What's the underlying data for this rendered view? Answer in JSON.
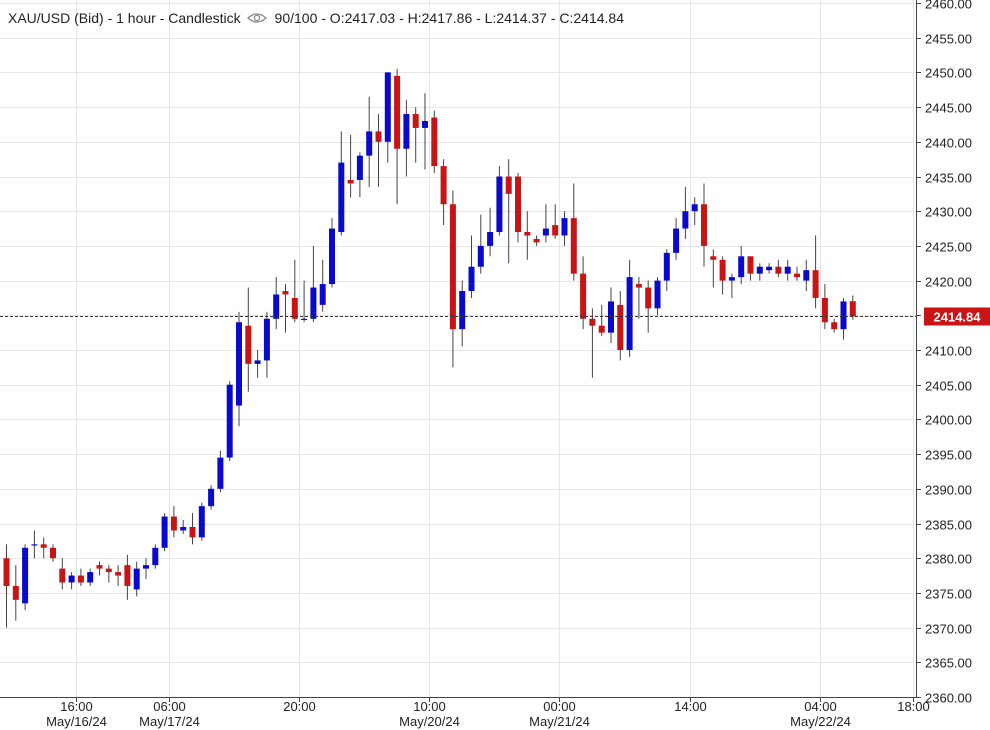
{
  "header": {
    "symbol_line": "XAU/USD (Bid) - 1 hour - Candlestick",
    "eye_icon": "eye-icon",
    "quality": "90/100",
    "ohlc": "- O:2417.03 - H:2417.86 - L:2414.37 - C:2414.84"
  },
  "colors": {
    "up": "#0a0acf",
    "down": "#c81414",
    "grid": "#e6e6e6",
    "price_marker": "#c81414"
  },
  "chart_data": {
    "type": "candlestick",
    "title": "XAU/USD (Bid) - 1 hour - Candlestick",
    "ylim": [
      2360,
      2460
    ],
    "y_ticks": [
      "2360.00",
      "2365.00",
      "2370.00",
      "2375.00",
      "2380.00",
      "2385.00",
      "2390.00",
      "2395.00",
      "2400.00",
      "2405.00",
      "2410.00",
      "2415.00",
      "2420.00",
      "2425.00",
      "2430.00",
      "2435.00",
      "2440.00",
      "2445.00",
      "2450.00",
      "2455.00",
      "2460.00"
    ],
    "x_ticks": [
      {
        "index": 4,
        "time": "16:00",
        "date": "May/16/24"
      },
      {
        "index": 14,
        "time": "06:00",
        "date": "May/17/24"
      },
      {
        "index": 28,
        "time": "20:00",
        "date": ""
      },
      {
        "index": 42,
        "time": "10:00",
        "date": "May/20/24"
      },
      {
        "index": 56,
        "time": "00:00",
        "date": "May/21/24"
      },
      {
        "index": 70,
        "time": "14:00",
        "date": ""
      },
      {
        "index": 84,
        "time": "04:00",
        "date": "May/22/24"
      },
      {
        "index": 94,
        "time": "18:00",
        "date": ""
      }
    ],
    "last_price": "2414.84",
    "candles": [
      {
        "o": 2380.0,
        "h": 2382.0,
        "l": 2370.0,
        "c": 2376.0
      },
      {
        "o": 2376.0,
        "h": 2379.0,
        "l": 2371.0,
        "c": 2374.0
      },
      {
        "o": 2373.5,
        "h": 2382.0,
        "l": 2372.5,
        "c": 2381.5
      },
      {
        "o": 2382.0,
        "h": 2384.0,
        "l": 2380.0,
        "c": 2382.0
      },
      {
        "o": 2382.0,
        "h": 2383.0,
        "l": 2380.0,
        "c": 2381.5
      },
      {
        "o": 2381.5,
        "h": 2382.0,
        "l": 2379.5,
        "c": 2380.0
      },
      {
        "o": 2378.5,
        "h": 2380.0,
        "l": 2375.5,
        "c": 2376.5
      },
      {
        "o": 2376.5,
        "h": 2378.0,
        "l": 2375.5,
        "c": 2377.5
      },
      {
        "o": 2377.5,
        "h": 2378.5,
        "l": 2376.0,
        "c": 2376.5
      },
      {
        "o": 2376.5,
        "h": 2378.5,
        "l": 2376.0,
        "c": 2378.0
      },
      {
        "o": 2379.0,
        "h": 2379.5,
        "l": 2377.5,
        "c": 2378.5
      },
      {
        "o": 2378.5,
        "h": 2379.0,
        "l": 2376.5,
        "c": 2378.0
      },
      {
        "o": 2378.0,
        "h": 2379.0,
        "l": 2376.0,
        "c": 2377.5
      },
      {
        "o": 2379.0,
        "h": 2380.5,
        "l": 2374.0,
        "c": 2376.0
      },
      {
        "o": 2375.5,
        "h": 2379.5,
        "l": 2374.5,
        "c": 2378.5
      },
      {
        "o": 2378.5,
        "h": 2380.0,
        "l": 2377.0,
        "c": 2379.0
      },
      {
        "o": 2379.0,
        "h": 2382.0,
        "l": 2378.5,
        "c": 2381.5
      },
      {
        "o": 2381.5,
        "h": 2386.5,
        "l": 2381.0,
        "c": 2386.0
      },
      {
        "o": 2386.0,
        "h": 2387.5,
        "l": 2383.0,
        "c": 2384.0
      },
      {
        "o": 2384.0,
        "h": 2385.5,
        "l": 2383.5,
        "c": 2384.5
      },
      {
        "o": 2384.5,
        "h": 2386.5,
        "l": 2382.0,
        "c": 2383.0
      },
      {
        "o": 2383.0,
        "h": 2388.0,
        "l": 2382.5,
        "c": 2387.5
      },
      {
        "o": 2387.5,
        "h": 2390.5,
        "l": 2387.0,
        "c": 2390.0
      },
      {
        "o": 2390.0,
        "h": 2395.5,
        "l": 2389.5,
        "c": 2394.5
      },
      {
        "o": 2394.5,
        "h": 2405.5,
        "l": 2394.0,
        "c": 2405.0
      },
      {
        "o": 2402.0,
        "h": 2415.5,
        "l": 2399.0,
        "c": 2414.0
      },
      {
        "o": 2413.5,
        "h": 2419.0,
        "l": 2404.0,
        "c": 2408.0
      },
      {
        "o": 2408.0,
        "h": 2410.0,
        "l": 2406.0,
        "c": 2408.5
      },
      {
        "o": 2408.5,
        "h": 2415.5,
        "l": 2406.0,
        "c": 2414.5
      },
      {
        "o": 2414.5,
        "h": 2420.5,
        "l": 2413.0,
        "c": 2418.0
      },
      {
        "o": 2418.5,
        "h": 2419.5,
        "l": 2412.5,
        "c": 2418.0
      },
      {
        "o": 2417.5,
        "h": 2423.0,
        "l": 2414.0,
        "c": 2414.5
      },
      {
        "o": 2414.5,
        "h": 2420.0,
        "l": 2414.0,
        "c": 2414.5
      },
      {
        "o": 2414.5,
        "h": 2425.0,
        "l": 2414.0,
        "c": 2419.0
      },
      {
        "o": 2416.5,
        "h": 2423.0,
        "l": 2415.5,
        "c": 2419.5
      },
      {
        "o": 2419.5,
        "h": 2429.0,
        "l": 2419.0,
        "c": 2427.5
      },
      {
        "o": 2427.0,
        "h": 2441.5,
        "l": 2426.5,
        "c": 2437.0
      },
      {
        "o": 2434.5,
        "h": 2441.0,
        "l": 2432.0,
        "c": 2434.0
      },
      {
        "o": 2434.5,
        "h": 2438.5,
        "l": 2432.0,
        "c": 2438.0
      },
      {
        "o": 2438.0,
        "h": 2446.5,
        "l": 2433.5,
        "c": 2441.5
      },
      {
        "o": 2441.5,
        "h": 2444.0,
        "l": 2433.5,
        "c": 2440.0
      },
      {
        "o": 2440.0,
        "h": 2450.0,
        "l": 2437.0,
        "c": 2450.0
      },
      {
        "o": 2449.5,
        "h": 2450.5,
        "l": 2431.0,
        "c": 2439.0
      },
      {
        "o": 2439.0,
        "h": 2446.0,
        "l": 2435.0,
        "c": 2444.0
      },
      {
        "o": 2444.0,
        "h": 2445.0,
        "l": 2437.0,
        "c": 2442.0
      },
      {
        "o": 2442.0,
        "h": 2447.0,
        "l": 2436.0,
        "c": 2443.0
      },
      {
        "o": 2443.5,
        "h": 2444.5,
        "l": 2435.5,
        "c": 2436.5
      },
      {
        "o": 2436.5,
        "h": 2437.5,
        "l": 2428.0,
        "c": 2431.0
      },
      {
        "o": 2431.0,
        "h": 2433.0,
        "l": 2407.5,
        "c": 2413.0
      },
      {
        "o": 2413.0,
        "h": 2420.0,
        "l": 2410.5,
        "c": 2418.5
      },
      {
        "o": 2418.5,
        "h": 2426.5,
        "l": 2417.5,
        "c": 2422.0
      },
      {
        "o": 2422.0,
        "h": 2429.5,
        "l": 2421.0,
        "c": 2425.0
      },
      {
        "o": 2425.0,
        "h": 2430.5,
        "l": 2423.5,
        "c": 2427.0
      },
      {
        "o": 2427.0,
        "h": 2436.5,
        "l": 2426.5,
        "c": 2435.0
      },
      {
        "o": 2435.0,
        "h": 2437.5,
        "l": 2422.5,
        "c": 2432.5
      },
      {
        "o": 2435.0,
        "h": 2435.5,
        "l": 2425.5,
        "c": 2427.0
      },
      {
        "o": 2427.0,
        "h": 2430.0,
        "l": 2423.0,
        "c": 2426.5
      },
      {
        "o": 2426.0,
        "h": 2426.5,
        "l": 2425.0,
        "c": 2425.5
      },
      {
        "o": 2426.5,
        "h": 2431.0,
        "l": 2425.5,
        "c": 2427.5
      },
      {
        "o": 2428.0,
        "h": 2431.0,
        "l": 2426.0,
        "c": 2426.5
      },
      {
        "o": 2426.5,
        "h": 2430.0,
        "l": 2425.0,
        "c": 2429.0
      },
      {
        "o": 2429.0,
        "h": 2434.0,
        "l": 2420.0,
        "c": 2421.0
      },
      {
        "o": 2421.0,
        "h": 2423.5,
        "l": 2413.0,
        "c": 2414.5
      },
      {
        "o": 2414.5,
        "h": 2416.0,
        "l": 2406.0,
        "c": 2413.5
      },
      {
        "o": 2413.5,
        "h": 2416.5,
        "l": 2412.0,
        "c": 2412.5
      },
      {
        "o": 2412.5,
        "h": 2419.0,
        "l": 2411.0,
        "c": 2417.0
      },
      {
        "o": 2416.5,
        "h": 2418.5,
        "l": 2408.5,
        "c": 2410.0
      },
      {
        "o": 2410.0,
        "h": 2423.0,
        "l": 2409.0,
        "c": 2420.5
      },
      {
        "o": 2419.5,
        "h": 2420.5,
        "l": 2414.5,
        "c": 2419.0
      },
      {
        "o": 2419.0,
        "h": 2420.0,
        "l": 2412.5,
        "c": 2416.0
      },
      {
        "o": 2416.0,
        "h": 2420.5,
        "l": 2415.0,
        "c": 2420.0
      },
      {
        "o": 2420.0,
        "h": 2424.5,
        "l": 2418.5,
        "c": 2424.0
      },
      {
        "o": 2424.0,
        "h": 2429.0,
        "l": 2423.0,
        "c": 2427.5
      },
      {
        "o": 2427.5,
        "h": 2433.5,
        "l": 2426.0,
        "c": 2430.0
      },
      {
        "o": 2430.0,
        "h": 2432.0,
        "l": 2428.0,
        "c": 2431.0
      },
      {
        "o": 2431.0,
        "h": 2434.0,
        "l": 2422.0,
        "c": 2425.0
      },
      {
        "o": 2423.5,
        "h": 2424.5,
        "l": 2419.0,
        "c": 2423.0
      },
      {
        "o": 2423.0,
        "h": 2423.5,
        "l": 2418.0,
        "c": 2420.0
      },
      {
        "o": 2420.0,
        "h": 2421.0,
        "l": 2417.5,
        "c": 2420.5
      },
      {
        "o": 2420.5,
        "h": 2425.0,
        "l": 2419.5,
        "c": 2423.5
      },
      {
        "o": 2423.5,
        "h": 2423.5,
        "l": 2420.0,
        "c": 2421.0
      },
      {
        "o": 2421.0,
        "h": 2422.5,
        "l": 2420.0,
        "c": 2422.0
      },
      {
        "o": 2421.5,
        "h": 2422.5,
        "l": 2421.0,
        "c": 2422.0
      },
      {
        "o": 2422.0,
        "h": 2423.0,
        "l": 2420.5,
        "c": 2421.0
      },
      {
        "o": 2421.0,
        "h": 2423.0,
        "l": 2420.0,
        "c": 2422.0
      },
      {
        "o": 2421.0,
        "h": 2422.0,
        "l": 2420.0,
        "c": 2420.5
      },
      {
        "o": 2420.0,
        "h": 2423.0,
        "l": 2418.5,
        "c": 2421.5
      },
      {
        "o": 2421.5,
        "h": 2426.5,
        "l": 2416.0,
        "c": 2417.5
      },
      {
        "o": 2417.5,
        "h": 2419.5,
        "l": 2413.0,
        "c": 2414.0
      },
      {
        "o": 2414.0,
        "h": 2414.5,
        "l": 2412.5,
        "c": 2413.0
      },
      {
        "o": 2413.0,
        "h": 2417.5,
        "l": 2411.5,
        "c": 2417.0
      },
      {
        "o": 2417.03,
        "h": 2417.86,
        "l": 2414.37,
        "c": 2414.84
      }
    ]
  }
}
